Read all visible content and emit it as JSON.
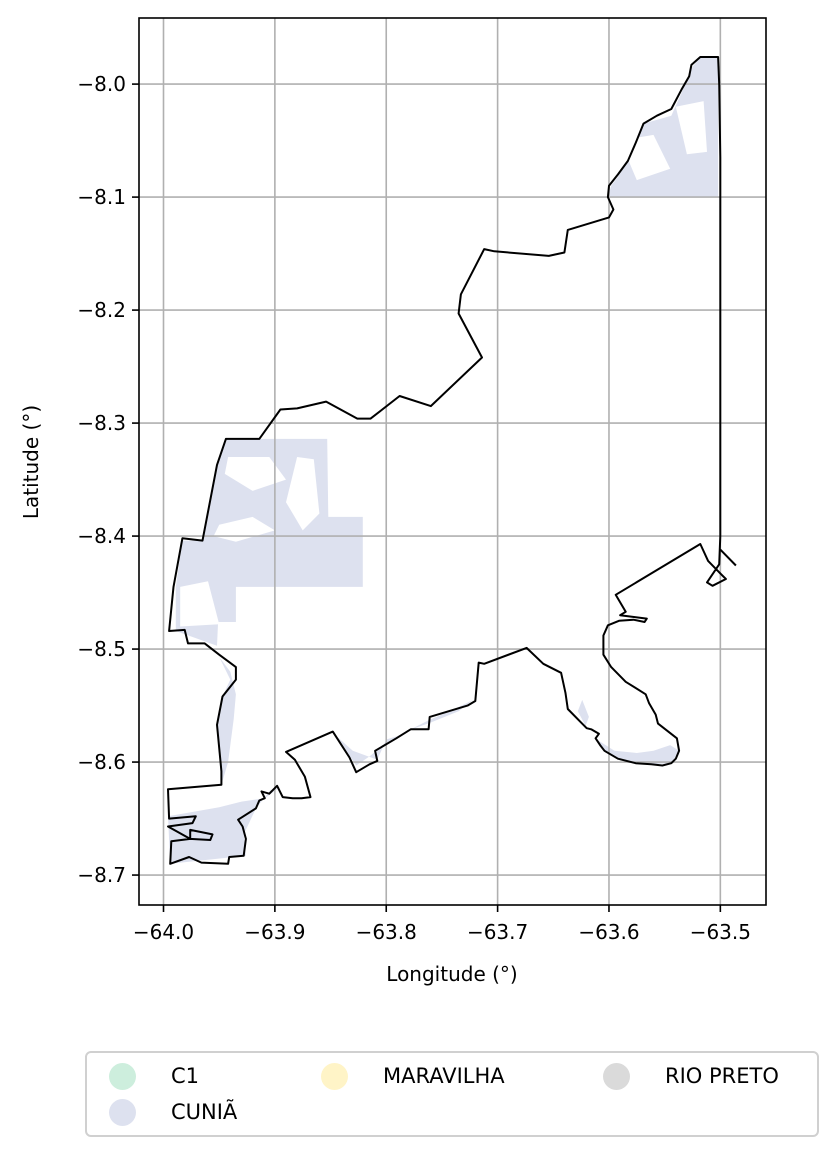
{
  "chart_data": {
    "type": "map",
    "xlabel": "Longitude (°)",
    "ylabel": "Latitude (°)",
    "xlim": [
      -64.022,
      -63.459
    ],
    "ylim": [
      -8.7265,
      -7.9415
    ],
    "grid": true,
    "x_ticks": [
      -64.0,
      -63.9,
      -63.8,
      -63.7,
      -63.6,
      -63.5
    ],
    "x_tick_labels": [
      "−64.0",
      "−63.9",
      "−63.8",
      "−63.7",
      "−63.6",
      "−63.5"
    ],
    "y_ticks": [
      -8.0,
      -8.1,
      -8.2,
      -8.3,
      -8.4,
      -8.5,
      -8.6,
      -8.7
    ],
    "y_tick_labels": [
      "−8.0",
      "−8.1",
      "−8.2",
      "−8.3",
      "−8.4",
      "−8.5",
      "−8.6",
      "−8.7"
    ],
    "legend": {
      "placement": "below",
      "columns": 3,
      "items": [
        {
          "label": "C1",
          "color": "#cdeedd"
        },
        {
          "label": "MARAVILHA",
          "color": "#fff4c7"
        },
        {
          "label": "RIO PRETO",
          "color": "#dadada"
        },
        {
          "label": "CUNIÃ",
          "color": "#dde1ef"
        }
      ]
    },
    "fill_color": "#dde1ef",
    "boundary_color": "#000000",
    "boundary": [
      [
        -63.502,
        -7.976
      ],
      [
        -63.518,
        -7.976
      ],
      [
        -63.526,
        -7.983
      ],
      [
        -63.528,
        -7.993
      ],
      [
        -63.535,
        -8.005
      ],
      [
        -63.544,
        -8.022
      ],
      [
        -63.557,
        -8.028
      ],
      [
        -63.569,
        -8.035
      ],
      [
        -63.576,
        -8.052
      ],
      [
        -63.583,
        -8.068
      ],
      [
        -63.592,
        -8.08
      ],
      [
        -63.6,
        -8.09
      ],
      [
        -63.601,
        -8.1
      ],
      [
        -63.596,
        -8.111
      ],
      [
        -63.6,
        -8.118
      ],
      [
        -63.637,
        -8.129
      ],
      [
        -63.64,
        -8.149
      ],
      [
        -63.654,
        -8.152
      ],
      [
        -63.703,
        -8.148
      ],
      [
        -63.712,
        -8.146
      ],
      [
        -63.733,
        -8.186
      ],
      [
        -63.735,
        -8.203
      ],
      [
        -63.714,
        -8.242
      ],
      [
        -63.76,
        -8.285
      ],
      [
        -63.788,
        -8.276
      ],
      [
        -63.814,
        -8.296
      ],
      [
        -63.826,
        -8.296
      ],
      [
        -63.854,
        -8.281
      ],
      [
        -63.88,
        -8.287
      ],
      [
        -63.895,
        -8.288
      ],
      [
        -63.914,
        -8.314
      ],
      [
        -63.944,
        -8.314
      ],
      [
        -63.952,
        -8.337
      ],
      [
        -63.965,
        -8.404
      ],
      [
        -63.983,
        -8.402
      ],
      [
        -63.991,
        -8.445
      ],
      [
        -63.995,
        -8.484
      ],
      [
        -63.981,
        -8.483
      ],
      [
        -63.978,
        -8.495
      ],
      [
        -63.963,
        -8.495
      ],
      [
        -63.95,
        -8.505
      ],
      [
        -63.935,
        -8.516
      ],
      [
        -63.935,
        -8.527
      ],
      [
        -63.947,
        -8.542
      ],
      [
        -63.952,
        -8.567
      ],
      [
        -63.948,
        -8.608
      ],
      [
        -63.948,
        -8.62
      ],
      [
        -63.996,
        -8.624
      ],
      [
        -63.995,
        -8.65
      ],
      [
        -63.971,
        -8.648
      ],
      [
        -63.974,
        -8.654
      ],
      [
        -63.996,
        -8.657
      ],
      [
        -63.976,
        -8.668
      ],
      [
        -63.958,
        -8.669
      ],
      [
        -63.956,
        -8.664
      ],
      [
        -63.976,
        -8.66
      ],
      [
        -63.976,
        -8.668
      ],
      [
        -63.993,
        -8.67
      ],
      [
        -63.994,
        -8.69
      ],
      [
        -63.977,
        -8.684
      ],
      [
        -63.966,
        -8.689
      ],
      [
        -63.942,
        -8.69
      ],
      [
        -63.941,
        -8.684
      ],
      [
        -63.928,
        -8.683
      ],
      [
        -63.926,
        -8.668
      ],
      [
        -63.929,
        -8.657
      ],
      [
        -63.933,
        -8.651
      ],
      [
        -63.917,
        -8.641
      ],
      [
        -63.914,
        -8.634
      ],
      [
        -63.909,
        -8.632
      ],
      [
        -63.912,
        -8.626
      ],
      [
        -63.905,
        -8.628
      ],
      [
        -63.898,
        -8.621
      ],
      [
        -63.893,
        -8.631
      ],
      [
        -63.884,
        -8.632
      ],
      [
        -63.876,
        -8.632
      ],
      [
        -63.868,
        -8.631
      ],
      [
        -63.873,
        -8.613
      ],
      [
        -63.882,
        -8.598
      ],
      [
        -63.89,
        -8.591
      ],
      [
        -63.848,
        -8.573
      ],
      [
        -63.833,
        -8.596
      ],
      [
        -63.827,
        -8.609
      ],
      [
        -63.815,
        -8.602
      ],
      [
        -63.808,
        -8.599
      ],
      [
        -63.81,
        -8.59
      ],
      [
        -63.791,
        -8.579
      ],
      [
        -63.778,
        -8.571
      ],
      [
        -63.762,
        -8.571
      ],
      [
        -63.761,
        -8.56
      ],
      [
        -63.727,
        -8.55
      ],
      [
        -63.72,
        -8.546
      ],
      [
        -63.717,
        -8.512
      ],
      [
        -63.712,
        -8.513
      ],
      [
        -63.674,
        -8.499
      ],
      [
        -63.659,
        -8.513
      ],
      [
        -63.643,
        -8.521
      ],
      [
        -63.639,
        -8.539
      ],
      [
        -63.637,
        -8.553
      ],
      [
        -63.627,
        -8.563
      ],
      [
        -63.62,
        -8.57
      ],
      [
        -63.616,
        -8.571
      ],
      [
        -63.609,
        -8.575
      ],
      [
        -63.612,
        -8.579
      ],
      [
        -63.608,
        -8.585
      ],
      [
        -63.604,
        -8.59
      ],
      [
        -63.592,
        -8.597
      ],
      [
        -63.576,
        -8.601
      ],
      [
        -63.562,
        -8.602
      ],
      [
        -63.552,
        -8.603
      ],
      [
        -63.544,
        -8.601
      ],
      [
        -63.54,
        -8.597
      ],
      [
        -63.537,
        -8.59
      ],
      [
        -63.539,
        -8.579
      ],
      [
        -63.556,
        -8.566
      ],
      [
        -63.558,
        -8.558
      ],
      [
        -63.564,
        -8.548
      ],
      [
        -63.567,
        -8.54
      ],
      [
        -63.585,
        -8.529
      ],
      [
        -63.598,
        -8.516
      ],
      [
        -63.605,
        -8.505
      ],
      [
        -63.605,
        -8.488
      ],
      [
        -63.601,
        -8.479
      ],
      [
        -63.591,
        -8.475
      ],
      [
        -63.578,
        -8.474
      ],
      [
        -63.568,
        -8.476
      ],
      [
        -63.566,
        -8.473
      ],
      [
        -63.59,
        -8.47
      ],
      [
        -63.585,
        -8.467
      ],
      [
        -63.594,
        -8.452
      ],
      [
        -63.518,
        -8.407
      ],
      [
        -63.511,
        -8.422
      ],
      [
        -63.5,
        -8.433
      ],
      [
        -63.495,
        -8.438
      ],
      [
        -63.507,
        -8.444
      ],
      [
        -63.512,
        -8.441
      ],
      [
        -63.501,
        -8.425
      ],
      [
        -63.5,
        -8.4
      ],
      [
        -63.5,
        -8.3
      ],
      [
        -63.5,
        -8.15
      ],
      [
        -63.5,
        -8.065
      ],
      [
        -63.501,
        -8.0
      ],
      [
        -63.502,
        -7.976
      ]
    ],
    "inner_line": [
      [
        -63.486,
        -8.426
      ],
      [
        -63.5,
        -8.412
      ]
    ],
    "filled_regions": [
      [
        [
          -63.502,
          -7.976
        ],
        [
          -63.518,
          -7.976
        ],
        [
          -63.526,
          -7.986
        ],
        [
          -63.535,
          -8.008
        ],
        [
          -63.544,
          -8.028
        ],
        [
          -63.569,
          -8.035
        ],
        [
          -63.583,
          -8.068
        ],
        [
          -63.592,
          -8.082
        ],
        [
          -63.598,
          -8.09
        ],
        [
          -63.601,
          -8.1
        ],
        [
          -63.502,
          -8.1
        ]
      ],
      [
        [
          -63.944,
          -8.314
        ],
        [
          -63.853,
          -8.314
        ],
        [
          -63.852,
          -8.383
        ],
        [
          -63.821,
          -8.383
        ],
        [
          -63.821,
          -8.445
        ],
        [
          -63.935,
          -8.445
        ],
        [
          -63.935,
          -8.476
        ],
        [
          -63.951,
          -8.476
        ],
        [
          -63.952,
          -8.497
        ],
        [
          -63.989,
          -8.484
        ],
        [
          -63.989,
          -8.445
        ],
        [
          -63.983,
          -8.404
        ],
        [
          -63.965,
          -8.404
        ],
        [
          -63.952,
          -8.337
        ]
      ],
      [
        [
          -63.95,
          -8.507
        ],
        [
          -63.94,
          -8.52
        ],
        [
          -63.935,
          -8.54
        ],
        [
          -63.937,
          -8.562
        ],
        [
          -63.942,
          -8.6
        ],
        [
          -63.948,
          -8.62
        ],
        [
          -63.952,
          -8.567
        ],
        [
          -63.947,
          -8.542
        ],
        [
          -63.94,
          -8.527
        ]
      ],
      [
        [
          -63.996,
          -8.648
        ],
        [
          -63.95,
          -8.64
        ],
        [
          -63.93,
          -8.635
        ],
        [
          -63.909,
          -8.632
        ],
        [
          -63.895,
          -8.622
        ],
        [
          -63.904,
          -8.625
        ],
        [
          -63.917,
          -8.641
        ],
        [
          -63.928,
          -8.664
        ],
        [
          -63.926,
          -8.683
        ],
        [
          -63.994,
          -8.69
        ]
      ],
      [
        [
          -63.846,
          -8.576
        ],
        [
          -63.83,
          -8.59
        ],
        [
          -63.808,
          -8.598
        ],
        [
          -63.8,
          -8.58
        ],
        [
          -63.79,
          -8.577
        ],
        [
          -63.762,
          -8.563
        ],
        [
          -63.745,
          -8.556
        ],
        [
          -63.728,
          -8.548
        ],
        [
          -63.722,
          -8.545
        ],
        [
          -63.735,
          -8.555
        ],
        [
          -63.76,
          -8.565
        ],
        [
          -63.78,
          -8.572
        ],
        [
          -63.8,
          -8.583
        ],
        [
          -63.815,
          -8.595
        ],
        [
          -63.827,
          -8.603
        ]
      ],
      [
        [
          -63.611,
          -8.58
        ],
        [
          -63.606,
          -8.588
        ],
        [
          -63.592,
          -8.597
        ],
        [
          -63.562,
          -8.602
        ],
        [
          -63.544,
          -8.601
        ],
        [
          -63.537,
          -8.59
        ],
        [
          -63.545,
          -8.585
        ],
        [
          -63.56,
          -8.59
        ],
        [
          -63.575,
          -8.592
        ],
        [
          -63.595,
          -8.59
        ]
      ],
      [
        [
          -63.621,
          -8.568
        ],
        [
          -63.618,
          -8.56
        ],
        [
          -63.624,
          -8.545
        ],
        [
          -63.628,
          -8.555
        ]
      ]
    ],
    "background_white_areas": [
      [
        [
          -63.942,
          -8.33
        ],
        [
          -63.905,
          -8.33
        ],
        [
          -63.89,
          -8.35
        ],
        [
          -63.92,
          -8.36
        ],
        [
          -63.945,
          -8.345
        ]
      ],
      [
        [
          -63.95,
          -8.39
        ],
        [
          -63.92,
          -8.383
        ],
        [
          -63.9,
          -8.395
        ],
        [
          -63.935,
          -8.405
        ],
        [
          -63.955,
          -8.4
        ]
      ],
      [
        [
          -63.88,
          -8.33
        ],
        [
          -63.865,
          -8.332
        ],
        [
          -63.86,
          -8.38
        ],
        [
          -63.875,
          -8.395
        ],
        [
          -63.89,
          -8.37
        ]
      ],
      [
        [
          -63.985,
          -8.445
        ],
        [
          -63.96,
          -8.44
        ],
        [
          -63.95,
          -8.478
        ],
        [
          -63.985,
          -8.48
        ]
      ],
      [
        [
          -63.59,
          -8.05
        ],
        [
          -63.56,
          -8.045
        ],
        [
          -63.545,
          -8.075
        ],
        [
          -63.575,
          -8.085
        ]
      ],
      [
        [
          -63.54,
          -8.02
        ],
        [
          -63.515,
          -8.015
        ],
        [
          -63.512,
          -8.06
        ],
        [
          -63.53,
          -8.062
        ]
      ]
    ]
  }
}
